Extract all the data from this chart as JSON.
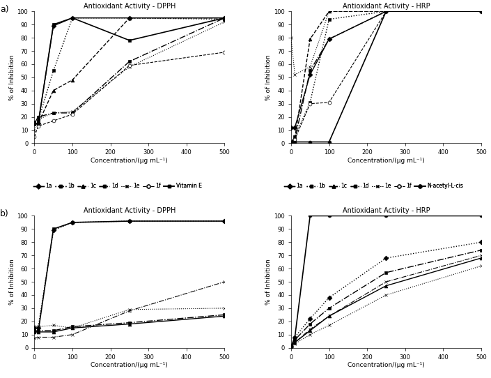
{
  "concentrations": [
    0,
    10,
    50,
    100,
    250,
    500
  ],
  "series1_dpph": {
    "1a": [
      15,
      15,
      89,
      95,
      95,
      95
    ],
    "1b": [
      16,
      17,
      55,
      95,
      95,
      94
    ],
    "1c": [
      15,
      15,
      40,
      48,
      95,
      95
    ],
    "1d": [
      15,
      20,
      23,
      23,
      62,
      95
    ],
    "1e": [
      10,
      18,
      23,
      24,
      58,
      92
    ],
    "1f": [
      5,
      13,
      17,
      22,
      59,
      69
    ],
    "VitaminE": [
      15,
      15,
      90,
      95,
      78,
      95
    ]
  },
  "series1_hrp": {
    "1a": [
      12,
      12,
      52,
      79,
      100,
      100
    ],
    "1b": [
      1,
      5,
      31,
      94,
      100,
      100
    ],
    "1c": [
      1,
      4,
      79,
      100,
      100,
      100
    ],
    "1d": [
      1,
      3,
      55,
      79,
      100,
      100
    ],
    "1e": [
      80,
      52,
      58,
      100,
      100,
      100
    ],
    "1f": [
      1,
      3,
      30,
      31,
      100,
      100
    ],
    "NAcetyl": [
      1,
      1,
      1,
      1,
      100,
      100
    ]
  },
  "series2_dpph": {
    "2a": [
      15,
      15,
      89,
      95,
      96,
      96
    ],
    "2b": [
      13,
      13,
      13,
      16,
      19,
      25
    ],
    "2c": [
      12,
      12,
      12,
      15,
      18,
      24
    ],
    "2d": [
      7,
      8,
      8,
      10,
      28,
      50
    ],
    "2e": [
      16,
      16,
      17,
      15,
      29,
      30
    ],
    "VitaminE": [
      12,
      12,
      90,
      95,
      96,
      96
    ]
  },
  "series2_hrp": {
    "2a": [
      1,
      8,
      22,
      38,
      68,
      80
    ],
    "2b": [
      1,
      6,
      18,
      30,
      57,
      74
    ],
    "2c": [
      1,
      4,
      13,
      24,
      47,
      68
    ],
    "2d": [
      1,
      4,
      14,
      24,
      50,
      70
    ],
    "2e": [
      1,
      3,
      10,
      17,
      40,
      62
    ],
    "NAcetyl": [
      1,
      8,
      100,
      100,
      100,
      100
    ]
  },
  "xlim": [
    0,
    500
  ],
  "ylim": [
    0,
    100
  ],
  "yticks": [
    0,
    10,
    20,
    30,
    40,
    50,
    60,
    70,
    80,
    90,
    100
  ],
  "xticks": [
    0,
    100,
    200,
    300,
    400,
    500
  ],
  "xlabel": "Concentration/(μg mL⁻¹)",
  "ylabel": "% of Inhibition",
  "title_dpph": "Antioxidant Activity - DPPH",
  "title_hrp": "Antioxidant Activity - HRP",
  "label_a": "a)",
  "label_b": "b)"
}
